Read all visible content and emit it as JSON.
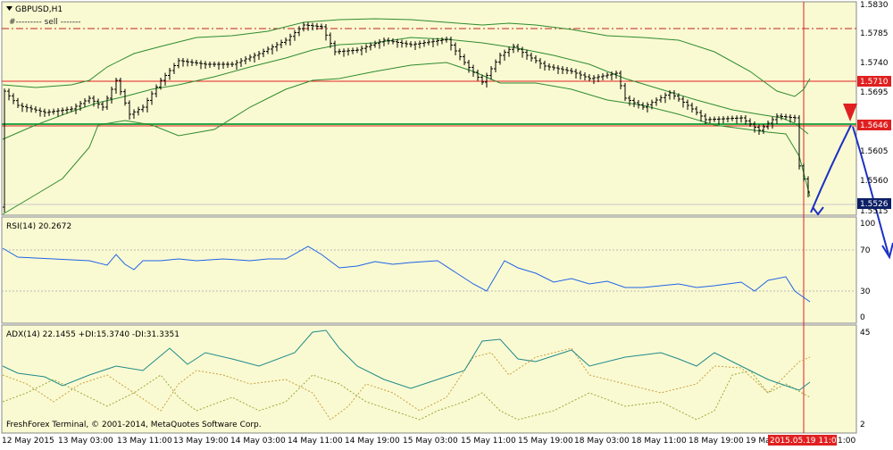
{
  "main_chart": {
    "title": "GBPUSD,H1",
    "subtitle": "#--------- sell -------",
    "price_scale": [
      "1.5830",
      "1.5785",
      "1.5740",
      "1.5695",
      "1.5605",
      "1.5560"
    ],
    "line_labels": [
      "1.5710",
      "1.5646"
    ],
    "current_price": "1.5526",
    "low_label": "1.5515"
  },
  "rsi": {
    "label": "RSI(14) 20.2672",
    "scale": [
      "100",
      "70",
      "30",
      "0"
    ]
  },
  "adx": {
    "label": "ADX(14) 22.1455 +DI:15.3740 -DI:31.3351",
    "scale": [
      "45",
      "2"
    ],
    "copyright": "FreshForex Terminal, © 2001-2014, MetaQuotes Software Corp."
  },
  "time_axis": {
    "labels": [
      "12 May 2015",
      "13 May 03:00",
      "13 May 11:00",
      "13 May 19:00",
      "14 May 03:00",
      "14 May 11:00",
      "14 May 19:00",
      "15 May 03:00",
      "15 May 11:00",
      "15 May 19:00",
      "18 May 03:00",
      "18 May 11:00",
      "18 May 19:00",
      "19 Ma"
    ],
    "highlight_label": "2015.05.19 11:00",
    "trailing": "1:00"
  },
  "colors": {
    "panel_bg": "#fafad2",
    "bollinger": "#2e8b2e",
    "rsi_line": "#1e64e6",
    "adx_line": "#1f8a8a",
    "plus_di": "#9aa83a",
    "minus_di": "#c8a044",
    "resistance": "#e02020",
    "support": "#2aa84a",
    "label_bg": "#e02020",
    "price_bg": "#0b1f66",
    "vline": "#e02020",
    "arrow": "#1c31c4"
  }
}
